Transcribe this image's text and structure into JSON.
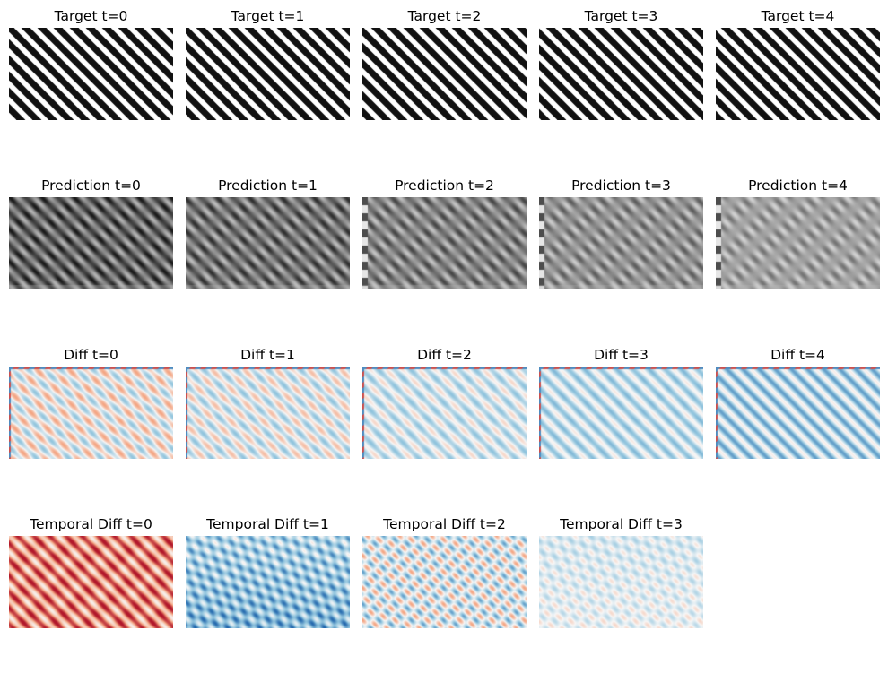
{
  "rows": [
    {
      "kind": "target",
      "panels": [
        {
          "title": "Target t=0",
          "t": 0
        },
        {
          "title": "Target t=1",
          "t": 1
        },
        {
          "title": "Target t=2",
          "t": 2
        },
        {
          "title": "Target t=3",
          "t": 3
        },
        {
          "title": "Target t=4",
          "t": 4
        }
      ]
    },
    {
      "kind": "prediction",
      "panels": [
        {
          "title": "Prediction t=0",
          "t": 0
        },
        {
          "title": "Prediction t=1",
          "t": 1
        },
        {
          "title": "Prediction t=2",
          "t": 2
        },
        {
          "title": "Prediction t=3",
          "t": 3
        },
        {
          "title": "Prediction t=4",
          "t": 4
        }
      ]
    },
    {
      "kind": "diff",
      "panels": [
        {
          "title": "Diff t=0",
          "t": 0
        },
        {
          "title": "Diff t=1",
          "t": 1
        },
        {
          "title": "Diff t=2",
          "t": 2
        },
        {
          "title": "Diff t=3",
          "t": 3
        },
        {
          "title": "Diff t=4",
          "t": 4
        }
      ]
    },
    {
      "kind": "temporal",
      "panels": [
        {
          "title": "Temporal Diff t=0",
          "t": 0
        },
        {
          "title": "Temporal Diff t=1",
          "t": 1
        },
        {
          "title": "Temporal Diff t=2",
          "t": 2
        },
        {
          "title": "Temporal Diff t=3",
          "t": 3
        }
      ]
    }
  ],
  "colors": {
    "stripe_dark": "#111111",
    "stripe_light": "#ffffff",
    "red_strong": "#b2182b",
    "red_light": "#f4a582",
    "blue_strong": "#2166ac",
    "blue_light": "#92c5de",
    "neutral": "#f7f7f7"
  }
}
